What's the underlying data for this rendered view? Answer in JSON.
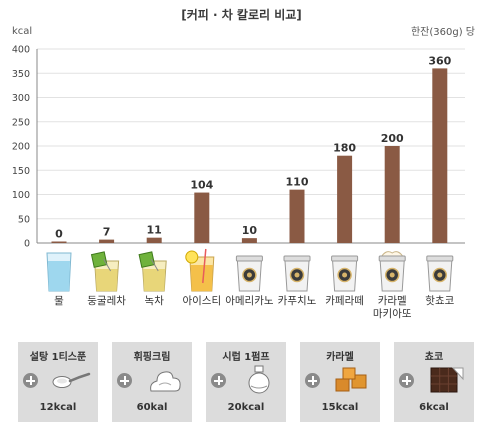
{
  "page": {
    "title": "[커피 · 차 칼로리 비교]",
    "unit_note": "한잔(360g) 당"
  },
  "chart_data": {
    "type": "bar",
    "ylabel": "kcal",
    "ylim": [
      0,
      400
    ],
    "yticks": [
      0,
      50,
      100,
      150,
      200,
      250,
      300,
      350,
      400
    ],
    "grid": true,
    "bar_color": "#8a5a44",
    "categories": [
      "물",
      "둥굴레차",
      "녹차",
      "아이스티",
      "아메리카노",
      "카푸치노",
      "카페라떼",
      "카라멜 마키아또",
      "핫쵸코"
    ],
    "values": [
      0,
      7,
      11,
      104,
      10,
      110,
      180,
      200,
      360
    ],
    "drink_icons": [
      "water-glass-icon",
      "tea-bag-icon",
      "tea-bag-icon",
      "iced-tea-glass-icon",
      "coffee-cup-icon",
      "coffee-cup-icon",
      "coffee-cup-icon",
      "whipped-coffee-cup-icon",
      "coffee-cup-icon"
    ]
  },
  "addons": [
    {
      "name": "설탕 1티스푼",
      "kcal": "12kcal",
      "icon": "spoon-icon"
    },
    {
      "name": "휘핑크림",
      "kcal": "60kal",
      "icon": "whipped-cream-icon"
    },
    {
      "name": "시럽 1펌프",
      "kcal": "20kcal",
      "icon": "syrup-bottle-icon"
    },
    {
      "name": "카라멜",
      "kcal": "15kcal",
      "icon": "caramel-icon"
    },
    {
      "name": "쵸코",
      "kcal": "6kcal",
      "icon": "chocolate-icon"
    }
  ]
}
